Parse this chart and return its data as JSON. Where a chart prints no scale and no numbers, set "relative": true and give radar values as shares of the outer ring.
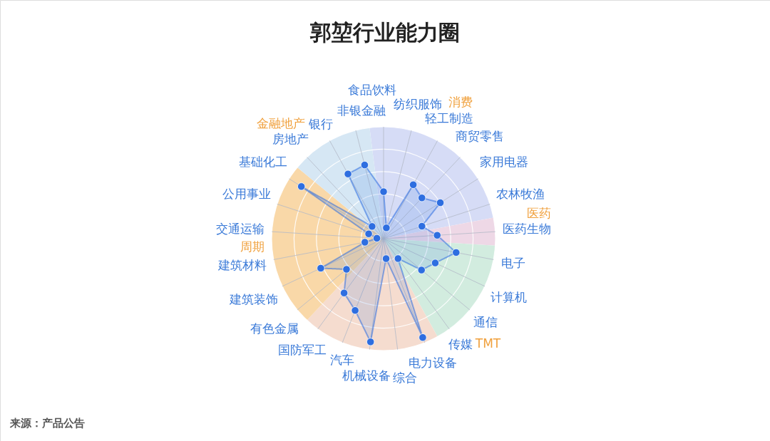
{
  "chart_data": [
    {
      "type": "radar",
      "title": "郭堃行业能力圈",
      "relative": true,
      "grid": true,
      "marker": "circle",
      "categories": [
        "食品饮料",
        "纺织服饰",
        "轻工制造",
        "商贸零售",
        "家用电器",
        "农林牧渔",
        "医药生物",
        "电子",
        "计算机",
        "通信",
        "传媒",
        "电力设备",
        "综合",
        "机械设备",
        "汽车",
        "国防军工",
        "有色金属",
        "建筑装饰",
        "建筑材料",
        "交通运输",
        "公用事业",
        "基础化工",
        "房地产",
        "银行",
        "非银金融"
      ],
      "series": [
        {
          "color": "#2e6ee0",
          "values": [
            0.42,
            0.1,
            0.55,
            0.5,
            0.6,
            0.36,
            0.48,
            0.66,
            0.51,
            0.44,
            0.22,
            0.95,
            0.18,
            0.93,
            0.69,
            0.6,
            0.43,
            0.62,
            0.17,
            0.06,
            0.14,
            0.87,
            0.15,
            0.66,
            0.68
          ]
        }
      ],
      "annotations": [
        "来源：产品公告"
      ]
    },
    {
      "type": "pie",
      "categories": [
        "消费",
        "医药",
        "TMT",
        null,
        "周期",
        "金融地产"
      ],
      "values": [
        24,
        4,
        16,
        20,
        24,
        12
      ],
      "colors": [
        "#d6dcf6",
        "#eed8e6",
        "#d2ecdf",
        "#f5dccf",
        "#f9d8a8",
        "#d6e7f4"
      ]
    }
  ]
}
